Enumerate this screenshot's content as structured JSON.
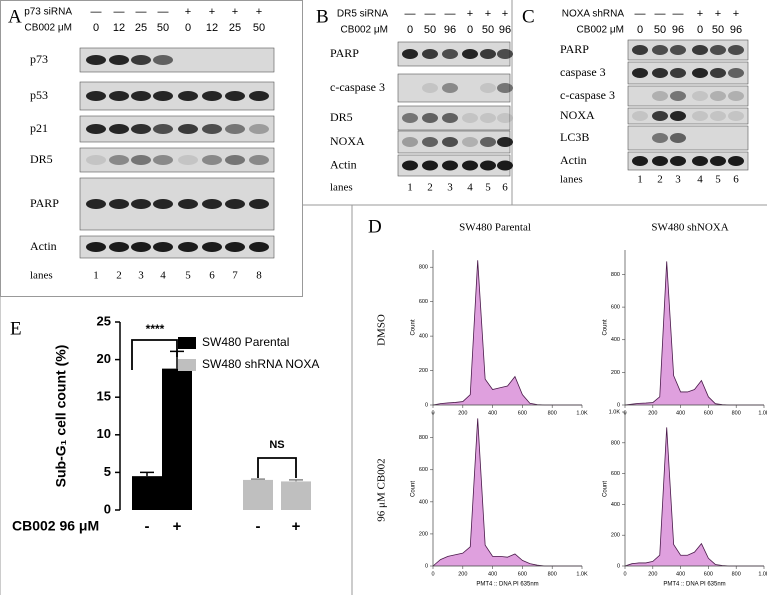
{
  "panel_a": {
    "letter": "A",
    "treatments": [
      {
        "label": "p73 siRNA",
        "lanes": [
          "—",
          "—",
          "—",
          "—",
          "+",
          "+",
          "+",
          "+"
        ]
      },
      {
        "label": "CB002 μM",
        "lanes": [
          "0",
          "12",
          "25",
          "50",
          "0",
          "12",
          "25",
          "50"
        ]
      }
    ],
    "bands": [
      "p73",
      "p53",
      "p21",
      "DR5",
      "PARP",
      "Actin"
    ],
    "lanes_label": "lanes",
    "lanes": [
      "1",
      "2",
      "3",
      "4",
      "5",
      "6",
      "7",
      "8"
    ]
  },
  "panel_b": {
    "letter": "B",
    "treatments": [
      {
        "label": "DR5 siRNA",
        "lanes": [
          "—",
          "—",
          "—",
          "+",
          "+",
          "+"
        ]
      },
      {
        "label": "CB002 μM",
        "lanes": [
          "0",
          "50",
          "96",
          "0",
          "50",
          "96"
        ]
      }
    ],
    "bands": [
      "PARP",
      "c-caspase 3",
      "DR5",
      "NOXA",
      "Actin"
    ],
    "lanes_label": "lanes",
    "lanes": [
      "1",
      "2",
      "3",
      "4",
      "5",
      "6"
    ]
  },
  "panel_c": {
    "letter": "C",
    "treatments": [
      {
        "label": "NOXA shRNA",
        "lanes": [
          "—",
          "—",
          "—",
          "+",
          "+",
          "+"
        ]
      },
      {
        "label": "CB002 μM",
        "lanes": [
          "0",
          "50",
          "96",
          "0",
          "50",
          "96"
        ]
      }
    ],
    "bands": [
      "PARP",
      "caspase 3",
      "c-caspase 3",
      "NOXA",
      "LC3B",
      "Actin"
    ],
    "lanes_label": "lanes",
    "lanes": [
      "1",
      "2",
      "3",
      "4",
      "5",
      "6"
    ]
  },
  "panel_d": {
    "letter": "D",
    "columns": [
      "SW480 Parental",
      "SW480 shNOXA"
    ],
    "rows": [
      "DMSO",
      "96 μM CB002"
    ]
  },
  "chart_data": [
    {
      "type": "bar",
      "panel_label": "E",
      "ylabel": "Sub-G₁ cell count (%)",
      "xlabel": "CB002 96 μM",
      "categories": [
        "-",
        "+",
        "-",
        "+"
      ],
      "series": [
        {
          "name": "SW480 Parental",
          "color": "#000000",
          "values": [
            4.5,
            18.8,
            null,
            null
          ],
          "errors": [
            0.5,
            2.3,
            null,
            null
          ]
        },
        {
          "name": "SW480 shRNA NOXA",
          "color": "#bfbfbf",
          "values": [
            null,
            null,
            4.0,
            3.8
          ],
          "errors": [
            null,
            null,
            0.1,
            0.2
          ]
        }
      ],
      "annotations": [
        "****",
        "NS"
      ],
      "ylim": [
        0,
        25
      ],
      "yticks": [
        0,
        5,
        10,
        15,
        20,
        25
      ]
    },
    {
      "type": "area",
      "color": "#d98fd8",
      "xlabel": "PMT4 :: DNA PI 635nm",
      "ylabel": "Count",
      "x": [
        0,
        50,
        100,
        150,
        200,
        250,
        300,
        350,
        400,
        450,
        500,
        550,
        600,
        650,
        700,
        750,
        800,
        850,
        900,
        950,
        1000
      ],
      "values": [
        0,
        8,
        12,
        15,
        20,
        60,
        840,
        150,
        90,
        100,
        110,
        165,
        60,
        10,
        2,
        0,
        0,
        0,
        0,
        0,
        0
      ],
      "xlim": [
        0,
        1000
      ],
      "xticks": [
        0,
        200,
        400,
        600,
        800,
        {
          "value": 1000,
          "label": "1.0K"
        }
      ],
      "ylim": [
        0,
        900
      ],
      "yticks": [
        0,
        200,
        400,
        600,
        800
      ]
    },
    {
      "type": "area",
      "color": "#d98fd8",
      "xlabel": "PMT4 :: DNA PI 635nm",
      "ylabel": "Count",
      "x": [
        0,
        50,
        100,
        150,
        200,
        250,
        300,
        350,
        400,
        450,
        500,
        550,
        600,
        650,
        700,
        750,
        800,
        850,
        900,
        950,
        1000
      ],
      "values": [
        0,
        5,
        10,
        12,
        15,
        50,
        880,
        180,
        80,
        80,
        95,
        150,
        50,
        8,
        2,
        0,
        0,
        0,
        0,
        0,
        0
      ],
      "xlim": [
        0,
        1000
      ],
      "xticks": [
        0,
        200,
        400,
        600,
        800,
        {
          "value": 1000,
          "label": "1.0K"
        }
      ],
      "ylim": [
        0,
        950
      ],
      "yticks": [
        0,
        200,
        400,
        600,
        800
      ]
    },
    {
      "type": "area",
      "color": "#d98fd8",
      "xlabel": "PMT4 :: DNA PI 635nm",
      "ylabel": "Count",
      "x": [
        0,
        50,
        100,
        150,
        200,
        250,
        300,
        350,
        400,
        450,
        500,
        550,
        600,
        650,
        700,
        750,
        800,
        850,
        900,
        950,
        1000
      ],
      "values": [
        0,
        40,
        60,
        70,
        80,
        120,
        920,
        130,
        60,
        60,
        55,
        75,
        35,
        15,
        5,
        0,
        0,
        0,
        0,
        0,
        0
      ],
      "xlim": [
        0,
        1000
      ],
      "xticks": [
        0,
        200,
        400,
        600,
        800,
        {
          "value": 1000,
          "label": "1.0K"
        }
      ],
      "ylim": [
        0,
        960
      ],
      "yticks": [
        0,
        200,
        400,
        600,
        800
      ]
    },
    {
      "type": "area",
      "color": "#d98fd8",
      "xlabel": "PMT4 :: DNA PI 635nm",
      "ylabel": "Count",
      "x": [
        0,
        50,
        100,
        150,
        200,
        250,
        300,
        350,
        400,
        450,
        500,
        550,
        600,
        650,
        700,
        750,
        800,
        850,
        900,
        950,
        1000
      ],
      "values": [
        0,
        15,
        20,
        20,
        30,
        70,
        900,
        140,
        70,
        70,
        90,
        145,
        50,
        10,
        3,
        0,
        0,
        0,
        0,
        0,
        0
      ],
      "xlim": [
        0,
        1000
      ],
      "xticks": [
        0,
        200,
        400,
        600,
        800,
        {
          "value": 1000,
          "label": "1.0K"
        }
      ],
      "ylim": [
        0,
        1000
      ],
      "yticks": [
        0,
        200,
        400,
        600,
        800,
        {
          "value": 1000,
          "label": "1.0K"
        }
      ]
    }
  ]
}
